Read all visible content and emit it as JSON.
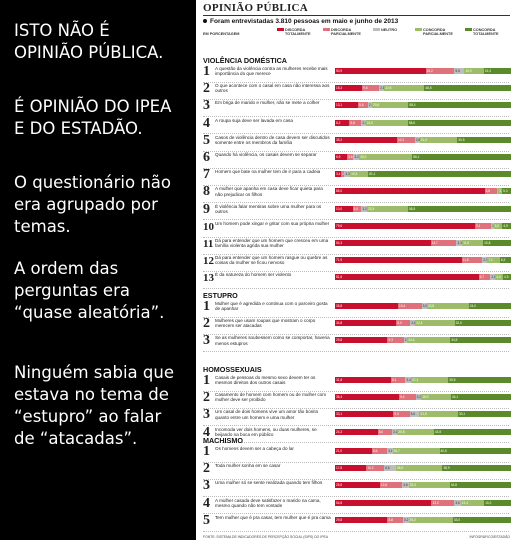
{
  "left": {
    "paragraphs": [
      "ISTO NÃO É\nOPINIÃO PÚBLICA.",
      "É OPINIÃO DO IPEA\nE DO ESTADÃO.",
      "O questionário não\nera agrupado por\ntemas.",
      "A ordem das\nperguntas era\n“quase aleatória”.",
      "Ninguém sabia que\nestava no tema de\n“estupro” ao falar\nde “atacadas”."
    ]
  },
  "panel": {
    "header": "OPINIÃO PÚBLICA",
    "subheader": "Foram entrevistadas 3.810 pessoas em maio e junho de 2013",
    "legend_label": "EM PORCENTAGEM",
    "legend": [
      {
        "label": "DISCORDA TOTALMENTE",
        "color": "#c8102e"
      },
      {
        "label": "DISCORDA PARCIALMENTE",
        "color": "#e0707a"
      },
      {
        "label": "NEUTRO",
        "color": "#bdbdbd"
      },
      {
        "label": "CONCORDA PARCIALMENTE",
        "color": "#9cbc6a"
      },
      {
        "label": "CONCORDA TOTALMENTE",
        "color": "#5a8a2a"
      }
    ],
    "footer_left": "FONTE: SISTEMA DE INDICADORES DE PERCEPÇÃO SOCIAL (SIPS) DO IPEA",
    "footer_right": "INFOGRÁFICO/ESTADÃO",
    "sections": [
      {
        "title": "VIOLÊNCIA DOMÉSTICA",
        "rows": [
          {
            "n": "1",
            "q": "A questão da violência contra as mulheres recebe mais importância do que merece",
            "v": [
              50.9,
              16.2,
              5.6,
              10.9,
              15.3
            ]
          },
          {
            "n": "2",
            "q": "O que acontece com o casal em casa não interessa aos outros",
            "v": [
              15.3,
              9.6,
              2.8,
              22.6,
              48.8
            ]
          },
          {
            "n": "3",
            "q": "Em briga de marido e mulher, não se mete a colher",
            "v": [
              13.1,
              5.6,
              2.4,
              20.6,
              58.4
            ]
          },
          {
            "n": "4",
            "q": "A roupa suja deve ser lavada em casa",
            "v": [
              8.2,
              6.8,
              2.4,
              24.0,
              58.6
            ]
          },
          {
            "n": "5",
            "q": "Casos de violência dentro de casa devem ser discutidos somente entre os membros da família",
            "v": [
              35.2,
              10.1,
              2.8,
              21.4,
              30.5
            ]
          },
          {
            "n": "6",
            "q": "Quando há violência, os casais devem se separar",
            "v": [
              6.9,
              3.6,
              3.2,
              30.2,
              56.1
            ]
          },
          {
            "n": "7",
            "q": "Homem que bate na mulher tem de ir para a cadeia",
            "v": [
              3.4,
              1.9,
              3.3,
              10.3,
              81.1
            ]
          },
          {
            "n": "8",
            "q": "A mulher que apanha em casa deve ficar quieta para não prejudicar os filhos",
            "v": [
              85.0,
              6.8,
              1.0,
              2.2,
              5.0
            ]
          },
          {
            "n": "9",
            "q": "É violência falar mentiras sobre uma mulher para os outros",
            "v": [
              10.0,
              5.0,
              3.2,
              23.3,
              58.5
            ]
          },
          {
            "n": "10",
            "q": "Um homem pode xingar e gritar com sua própria mulher",
            "v": [
              79.6,
              9.1,
              1.4,
              5.0,
              4.9
            ]
          },
          {
            "n": "11",
            "q": "Dá para entender que um homem que cresceu em uma família violenta agrida sua mulher",
            "v": [
              54.3,
              14.7,
              3.3,
              11.9,
              15.8
            ]
          },
          {
            "n": "12",
            "q": "Dá para entender que um homem rasgue ou quebre as coisas da mulher se ficou nervoso",
            "v": [
              71.9,
              11.8,
              2.9,
              7.1,
              6.3
            ]
          },
          {
            "n": "13",
            "q": "É da natureza do homem ser violento",
            "v": [
              81.6,
              6.7,
              2.8,
              4.4,
              4.5
            ]
          }
        ]
      },
      {
        "title": "ESTUPRO",
        "rows": [
          {
            "n": "1",
            "q": "Mulher que é agredida e continua com o parceiro gosta de apanhar",
            "v": [
              35.8,
              13.4,
              3.0,
              23.8,
              24.0
            ]
          },
          {
            "n": "2",
            "q": "Mulheres que usam roupas que mostram o corpo merecem ser atacadas",
            "v": [
              34.8,
              8.0,
              2.8,
              22.4,
              32.0
            ]
          },
          {
            "n": "3",
            "q": "Se as mulheres soubessem como se comportar, haveria menos estupros",
            "v": [
              29.8,
              9.3,
              2.0,
              24.4,
              34.5
            ]
          }
        ]
      },
      {
        "title": "HOMOSSEXUAIS",
        "rows": [
          {
            "n": "1",
            "q": "Casais de pessoas do mesmo sexo devem ter os mesmos direitos dos outros casais",
            "v": [
              31.8,
              8.1,
              3.4,
              21.1,
              35.6
            ]
          },
          {
            "n": "2",
            "q": "Casamento de homem com homem ou de mulher com mulher deve ser proibido",
            "v": [
              36.4,
              9.4,
              3.2,
              16.9,
              34.1
            ]
          },
          {
            "n": "3",
            "q": "Um casal de dois homens vive um amor tão bonito quanto entre um homem e uma mulher",
            "v": [
              33.1,
              9.3,
              5.6,
              21.9,
              30.1
            ]
          },
          {
            "n": "4",
            "q": "Incomoda ver dois homens, ou duas mulheres, se beijando na boca em público",
            "v": [
              24.3,
              8.0,
              3.1,
              20.8,
              43.8
            ]
          }
        ]
      },
      {
        "title": "MACHISMO",
        "rows": [
          {
            "n": "1",
            "q": "Os homens devem ser a cabeça do lar",
            "v": [
              21.0,
              8.6,
              3.1,
              26.7,
              40.6
            ]
          },
          {
            "n": "2",
            "q": "Toda mulher sonha em se casar",
            "v": [
              17.8,
              10.2,
              6.6,
              26.5,
              38.9
            ]
          },
          {
            "n": "3",
            "q": "Uma mulher só se sente realizada quando tem filhos",
            "v": [
              25.5,
              12.8,
              3.6,
              23.3,
              34.8
            ]
          },
          {
            "n": "4",
            "q": "A mulher casada deve satisfazer o marido na cama, mesmo quando não tem vontade",
            "v": [
              54.8,
              13.0,
              3.6,
              13.4,
              15.2
            ]
          },
          {
            "n": "5",
            "q": "Tem mulher que é pra casar, tem mulher que é pra cama",
            "v": [
              29.8,
              8.8,
              3.2,
              25.2,
              33.0
            ]
          }
        ]
      }
    ]
  }
}
